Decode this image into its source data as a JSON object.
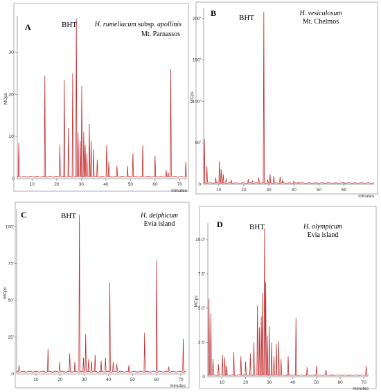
{
  "chart_data": [
    {
      "type": "line",
      "panel_label": "A",
      "marker_label": "BHT",
      "species": "H. rumeliacum",
      "species_suffix": " subsp. ",
      "species_tail": "apollinis",
      "location": "Mt. Parnassos",
      "ylabel": "MCps",
      "xlabel": "minutes",
      "xlim": [
        4,
        73
      ],
      "ylim": [
        0,
        38
      ],
      "xticks": [
        10,
        20,
        30,
        40,
        50,
        60,
        70
      ],
      "yticks": [
        10,
        20,
        30
      ],
      "yticklabels": [
        "10'",
        "20'",
        "30'"
      ],
      "baseline": 0.6,
      "peaks": [
        [
          4.6,
          8.5
        ],
        [
          15.2,
          24.5
        ],
        [
          21.3,
          8
        ],
        [
          23.1,
          23.5
        ],
        [
          24.8,
          12
        ],
        [
          26.5,
          25
        ],
        [
          28,
          38
        ],
        [
          28.7,
          11
        ],
        [
          29.6,
          9
        ],
        [
          30.2,
          22
        ],
        [
          31,
          11
        ],
        [
          31.6,
          8
        ],
        [
          32.3,
          6
        ],
        [
          33.3,
          13
        ],
        [
          34,
          9
        ],
        [
          35,
          7
        ],
        [
          36.5,
          4.5
        ],
        [
          40.3,
          8
        ],
        [
          41.2,
          4
        ],
        [
          44.5,
          3
        ],
        [
          48.8,
          3
        ],
        [
          51,
          6
        ],
        [
          55,
          8
        ],
        [
          60,
          5.5
        ],
        [
          64.5,
          2
        ],
        [
          65.3,
          1.5
        ],
        [
          66.4,
          26
        ],
        [
          72.5,
          4
        ]
      ]
    },
    {
      "type": "line",
      "panel_label": "B",
      "marker_label": "BHT",
      "species": "H. vesiculosum",
      "location": "Mt. Chelmos",
      "ylabel": "MCps",
      "xlabel": "minutes",
      "xlim": [
        4,
        72
      ],
      "ylim": [
        0,
        210
      ],
      "xticks": [
        10,
        20,
        30,
        40,
        50,
        60
      ],
      "yticks": [
        50,
        100,
        150,
        200
      ],
      "yticklabels": [
        "50'",
        "100'",
        "150'",
        "200'"
      ],
      "baseline": 2,
      "peaks": [
        [
          4.3,
          55
        ],
        [
          5.3,
          22
        ],
        [
          8.8,
          8
        ],
        [
          10.3,
          28
        ],
        [
          11,
          18
        ],
        [
          11.8,
          12
        ],
        [
          13,
          7
        ],
        [
          15,
          5
        ],
        [
          21.8,
          6
        ],
        [
          23.5,
          4
        ],
        [
          26,
          8
        ],
        [
          28,
          208
        ],
        [
          29.5,
          6
        ],
        [
          30.5,
          12
        ],
        [
          32,
          10
        ],
        [
          34.5,
          9
        ],
        [
          35.5,
          5
        ],
        [
          40,
          4
        ],
        [
          42,
          3
        ],
        [
          60,
          2
        ]
      ]
    },
    {
      "type": "line",
      "panel_label": "C",
      "marker_label": "BHT",
      "species": "H. delphicum",
      "location": "Evia island",
      "ylabel": "MCps",
      "xlabel": "minutes",
      "xlim": [
        2,
        72
      ],
      "ylim": [
        0,
        110
      ],
      "xticks": [
        10,
        20,
        30,
        40,
        50,
        60,
        70
      ],
      "yticks": [
        25,
        50,
        75,
        100
      ],
      "yticklabels": [
        "25'",
        "50'",
        "75'",
        "100'"
      ],
      "baseline": 2,
      "peaks": [
        [
          3,
          6
        ],
        [
          15,
          17
        ],
        [
          19.8,
          8
        ],
        [
          24,
          14
        ],
        [
          26.1,
          8
        ],
        [
          28,
          108
        ],
        [
          29.7,
          11
        ],
        [
          30.6,
          27
        ],
        [
          31.8,
          10
        ],
        [
          33,
          9
        ],
        [
          34.5,
          13
        ],
        [
          37,
          9
        ],
        [
          38.8,
          11
        ],
        [
          40.6,
          62
        ],
        [
          42,
          8
        ],
        [
          43.5,
          7
        ],
        [
          48.5,
          6
        ],
        [
          55,
          28
        ],
        [
          60,
          77
        ],
        [
          65,
          5
        ],
        [
          71,
          24
        ]
      ]
    },
    {
      "type": "line",
      "panel_label": "D",
      "marker_label": "BHT",
      "species": "H. olympicum",
      "location": "Evia island",
      "ylabel": "MCps",
      "xlabel": "minutes",
      "xlim": [
        4,
        72
      ],
      "ylim": [
        0,
        11
      ],
      "xticks": [
        10,
        20,
        30,
        40,
        50,
        60,
        70
      ],
      "yticks": [
        2.5,
        5,
        7.5,
        10
      ],
      "yticklabels": [
        "2.5'",
        "5.0'",
        "7.5'",
        "10.0'"
      ],
      "baseline": 0.15,
      "peaks": [
        [
          4.5,
          5.7
        ],
        [
          5.3,
          4.6
        ],
        [
          6.2,
          1.3
        ],
        [
          8.5,
          0.9
        ],
        [
          10.2,
          1.6
        ],
        [
          11.2,
          1.4
        ],
        [
          12,
          0.8
        ],
        [
          15,
          1.8
        ],
        [
          18,
          1.5
        ],
        [
          20,
          1.1
        ],
        [
          22,
          1.7
        ],
        [
          23.5,
          2.5
        ],
        [
          25,
          5.2
        ],
        [
          25.8,
          3.6
        ],
        [
          26.6,
          4.4
        ],
        [
          27.2,
          6.1
        ],
        [
          28,
          10.8
        ],
        [
          28.5,
          6.9
        ],
        [
          29.2,
          3
        ],
        [
          30,
          3.7
        ],
        [
          31,
          2.5
        ],
        [
          32,
          1.5
        ],
        [
          33,
          2.4
        ],
        [
          34,
          2.6
        ],
        [
          35,
          1.3
        ],
        [
          38,
          1.5
        ],
        [
          41.3,
          4.3
        ],
        [
          46,
          0.7
        ],
        [
          50,
          0.8
        ],
        [
          54,
          0.5
        ],
        [
          71,
          0.8
        ]
      ]
    }
  ]
}
